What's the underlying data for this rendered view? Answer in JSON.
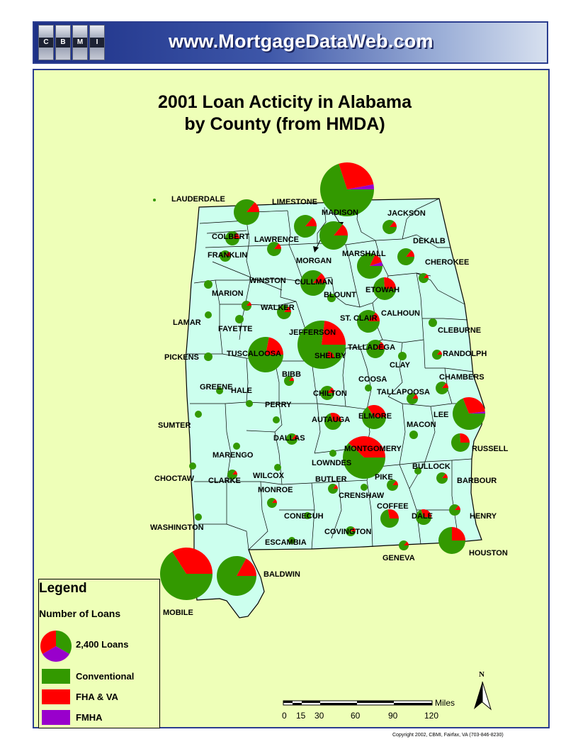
{
  "header": {
    "logo_letters": [
      "C",
      "B",
      "M",
      "I"
    ],
    "site_url": "www.MortgageDataWeb.com"
  },
  "map": {
    "title_line1": "2001 Loan Acticity in Alabama",
    "title_line2": "by County (from HMDA)",
    "counties": [
      {
        "name": "LAUDERDALE"
      },
      {
        "name": "LIMESTONE"
      },
      {
        "name": "MADISON"
      },
      {
        "name": "JACKSON"
      },
      {
        "name": "COLBERT"
      },
      {
        "name": "LAWRENCE"
      },
      {
        "name": "DEKALB"
      },
      {
        "name": "FRANKLIN"
      },
      {
        "name": "MARSHALL"
      },
      {
        "name": "MORGAN"
      },
      {
        "name": "CHEROKEE"
      },
      {
        "name": "WINSTON"
      },
      {
        "name": "CULLMAN"
      },
      {
        "name": "MARION"
      },
      {
        "name": "ETOWAH"
      },
      {
        "name": "BLOUNT"
      },
      {
        "name": "WALKER"
      },
      {
        "name": "CALHOUN"
      },
      {
        "name": "LAMAR"
      },
      {
        "name": "ST. CLAIR"
      },
      {
        "name": "FAYETTE"
      },
      {
        "name": "JEFFERSON"
      },
      {
        "name": "CLEBURNE"
      },
      {
        "name": "TALLADEGA"
      },
      {
        "name": "TUSCALOOSA"
      },
      {
        "name": "RANDOLPH"
      },
      {
        "name": "PICKENS"
      },
      {
        "name": "SHELBY"
      },
      {
        "name": "CLAY"
      },
      {
        "name": "BIBB"
      },
      {
        "name": "CHAMBERS"
      },
      {
        "name": "COOSA"
      },
      {
        "name": "GREENE"
      },
      {
        "name": "HALE"
      },
      {
        "name": "TALLAPOOSA"
      },
      {
        "name": "CHILTON"
      },
      {
        "name": "PERRY"
      },
      {
        "name": "LEE"
      },
      {
        "name": "ELMORE"
      },
      {
        "name": "SUMTER"
      },
      {
        "name": "AUTAUGA"
      },
      {
        "name": "MACON"
      },
      {
        "name": "DALLAS"
      },
      {
        "name": "RUSSELL"
      },
      {
        "name": "MARENGO"
      },
      {
        "name": "MONTGOMERY"
      },
      {
        "name": "LOWNDES"
      },
      {
        "name": "BULLOCK"
      },
      {
        "name": "CHOCTAW"
      },
      {
        "name": "WILCOX"
      },
      {
        "name": "CLARKE"
      },
      {
        "name": "BUTLER"
      },
      {
        "name": "PIKE"
      },
      {
        "name": "BARBOUR"
      },
      {
        "name": "MONROE"
      },
      {
        "name": "CRENSHAW"
      },
      {
        "name": "COFFEE"
      },
      {
        "name": "HENRY"
      },
      {
        "name": "CONECUH"
      },
      {
        "name": "DALE"
      },
      {
        "name": "WASHINGTON"
      },
      {
        "name": "COVINGTON"
      },
      {
        "name": "ESCAMBIA"
      },
      {
        "name": "HOUSTON"
      },
      {
        "name": "GENEVA"
      },
      {
        "name": "BALDWIN"
      },
      {
        "name": "MOBILE"
      }
    ]
  },
  "legend": {
    "title": "Legend",
    "subtitle": "Number of Loans",
    "pie_label": "2,400 Loans",
    "items": [
      {
        "label": "Conventional",
        "color": "#339900"
      },
      {
        "label": "FHA & VA",
        "color": "#ff0000"
      },
      {
        "label": "FMHA",
        "color": "#9900cc"
      }
    ]
  },
  "scale_bar": {
    "ticks": [
      "0",
      "15",
      "30",
      "60",
      "90",
      "120"
    ],
    "unit": "Miles"
  },
  "north_arrow": {
    "label": "N"
  },
  "copyright": "Copyright 2002, CBMI, Fairfax, VA  (703-846-8230)",
  "colors": {
    "conventional": "#339900",
    "fha_va": "#ff0000",
    "fmha": "#9900cc",
    "state_fill": "#ccffee",
    "background": "#eeffb8",
    "header_blue": "#1c2f86"
  }
}
